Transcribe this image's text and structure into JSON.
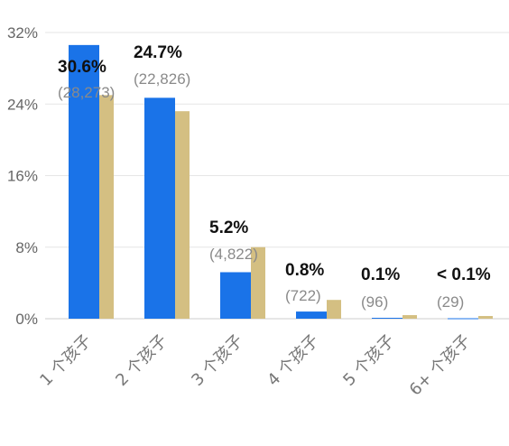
{
  "chart_data": {
    "type": "bar",
    "categories": [
      "1 个孩子",
      "2 个孩子",
      "3 个孩子",
      "4 个孩子",
      "5 个孩子",
      "6+ 个孩子"
    ],
    "series": [
      {
        "values": [
          30.6,
          24.7,
          5.2,
          0.8,
          0.1,
          0.05
        ],
        "color": "#1a73e8"
      },
      {
        "values": [
          25.0,
          23.2,
          8.0,
          2.1,
          0.4,
          0.3
        ],
        "color": "#d4bf82"
      }
    ],
    "bar_labels": [
      {
        "pct": "30.6%",
        "count": "(28,273)"
      },
      {
        "pct": "24.7%",
        "count": "(22,826)"
      },
      {
        "pct": "5.2%",
        "count": "(4,822)"
      },
      {
        "pct": "0.8%",
        "count": "(722)"
      },
      {
        "pct": "0.1%",
        "count": "(96)"
      },
      {
        "pct": "< 0.1%",
        "count": "(29)"
      }
    ],
    "y_ticks": [
      "0%",
      "8%",
      "16%",
      "24%",
      "32%"
    ],
    "y_tick_values": [
      0,
      8,
      16,
      24,
      32
    ],
    "ylim": [
      0,
      32
    ],
    "grid": true,
    "legend": "none"
  }
}
